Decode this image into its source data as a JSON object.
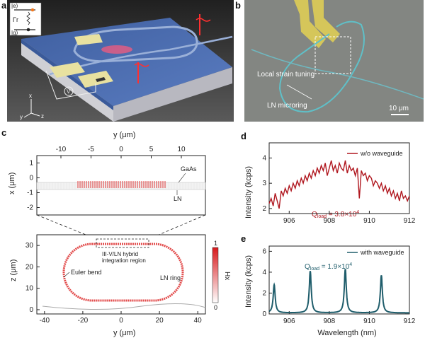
{
  "figure": {
    "panels": {
      "a": {
        "letter": "a",
        "energy_excited": "|e⟩",
        "energy_ground": "|g⟩",
        "decay_rate": "Γr",
        "voltage": "V",
        "axis_x": "x",
        "axis_y": "y",
        "axis_z": "z"
      },
      "b": {
        "letter": "b",
        "label_strain": "Local strain tuning",
        "label_ring": "LN microring",
        "scale_bar": "10 μm"
      },
      "c": {
        "letter": "c",
        "top": {
          "xlabel": "y (μm)",
          "ylabel": "x (μm)",
          "xticks": [
            "-10",
            "-5",
            "0",
            "5",
            "10"
          ],
          "yticks": [
            "1",
            "0",
            "-1",
            "-2"
          ],
          "label_gaas": "GaAs",
          "label_ln": "LN"
        },
        "bottom": {
          "xlabel": "y (μm)",
          "ylabel": "z (μm)",
          "xticks": [
            "-40",
            "-20",
            "0",
            "20",
            "40"
          ],
          "yticks": [
            "30",
            "20",
            "10",
            "0"
          ],
          "label_region": "III-V/LN hybrid\nintegration region",
          "label_region_line1": "III-V/LN hybrid",
          "label_region_line2": "integration region",
          "label_euler": "Euler bend",
          "label_ring": "LN ring",
          "colorbar_label": "Hx",
          "colorbar_max": "1",
          "colorbar_min": "0"
        }
      },
      "d": {
        "letter": "d",
        "ylabel": "Intensity (kcps)",
        "legend": "w/o waveguide",
        "annotation": "Q_load = 3.8×10^4",
        "q_text": "Q",
        "q_sub": "load",
        "q_val": " = 3.8×10",
        "q_exp": "4",
        "color": "#b0171f"
      },
      "e": {
        "letter": "e",
        "ylabel": "Intensity (kcps)",
        "xlabel": "Wavelength (nm)",
        "legend": "with waveguide",
        "q_text": "Q",
        "q_sub": "load",
        "q_val": " = 1.9×10",
        "q_exp": "4",
        "annotation": "Q_load = 1.9×10^4",
        "color": "#1f5d6b"
      }
    }
  },
  "chart_data": [
    {
      "panel": "d",
      "type": "line",
      "xlabel": "",
      "ylabel": "Intensity (kcps)",
      "xlim": [
        905,
        912
      ],
      "ylim": [
        1.8,
        4.6
      ],
      "xticks": [
        906,
        908,
        910,
        912
      ],
      "yticks": [
        2,
        3,
        4
      ],
      "series": [
        {
          "name": "w/o waveguide",
          "x": [
            905.0,
            905.1,
            905.2,
            905.3,
            905.4,
            905.5,
            905.6,
            905.7,
            905.8,
            905.9,
            906.0,
            906.1,
            906.2,
            906.3,
            906.4,
            906.5,
            906.6,
            906.7,
            906.8,
            906.9,
            907.0,
            907.1,
            907.2,
            907.3,
            907.4,
            907.5,
            907.6,
            907.7,
            907.8,
            907.9,
            908.0,
            908.1,
            908.2,
            908.3,
            908.4,
            908.5,
            908.6,
            908.7,
            908.8,
            908.9,
            909.0,
            909.1,
            909.2,
            909.3,
            909.4,
            909.5,
            909.6,
            909.7,
            909.8,
            909.9,
            910.0,
            910.1,
            910.2,
            910.3,
            910.4,
            910.5,
            910.6,
            910.7,
            910.8,
            910.9,
            911.0,
            911.1,
            911.2,
            911.3,
            911.4,
            911.5,
            911.6,
            911.7,
            911.8,
            911.9,
            912.0
          ],
          "y": [
            2.2,
            2.4,
            2.1,
            2.6,
            2.3,
            2.0,
            2.7,
            2.5,
            2.8,
            2.6,
            2.9,
            2.7,
            3.0,
            2.8,
            3.1,
            2.9,
            3.2,
            3.0,
            3.3,
            3.1,
            3.4,
            3.2,
            3.5,
            3.3,
            3.6,
            3.4,
            3.7,
            3.5,
            3.8,
            3.3,
            3.6,
            3.9,
            3.5,
            3.7,
            3.4,
            3.8,
            3.6,
            3.5,
            3.9,
            3.4,
            3.7,
            3.5,
            3.6,
            3.3,
            3.6,
            2.4,
            3.5,
            3.3,
            3.4,
            3.1,
            3.3,
            3.2,
            2.9,
            3.1,
            3.0,
            2.8,
            3.0,
            2.7,
            2.9,
            2.6,
            2.8,
            2.5,
            2.7,
            2.4,
            2.6,
            2.3,
            2.7,
            2.4,
            2.5,
            2.3,
            2.5
          ]
        }
      ]
    },
    {
      "panel": "e",
      "type": "line",
      "xlabel": "Wavelength (nm)",
      "ylabel": "Intensity (kcps)",
      "xlim": [
        905,
        912
      ],
      "ylim": [
        0,
        6.5
      ],
      "xticks": [
        906,
        908,
        910,
        912
      ],
      "yticks": [
        0,
        2,
        4,
        6
      ],
      "series": [
        {
          "name": "with waveguide",
          "peaks": [
            {
              "center": 905.25,
              "height": 2.7
            },
            {
              "center": 907.05,
              "height": 4.0
            },
            {
              "center": 908.8,
              "height": 4.2
            },
            {
              "center": 910.6,
              "height": 3.6
            }
          ],
          "baseline": 0.1
        }
      ]
    }
  ]
}
